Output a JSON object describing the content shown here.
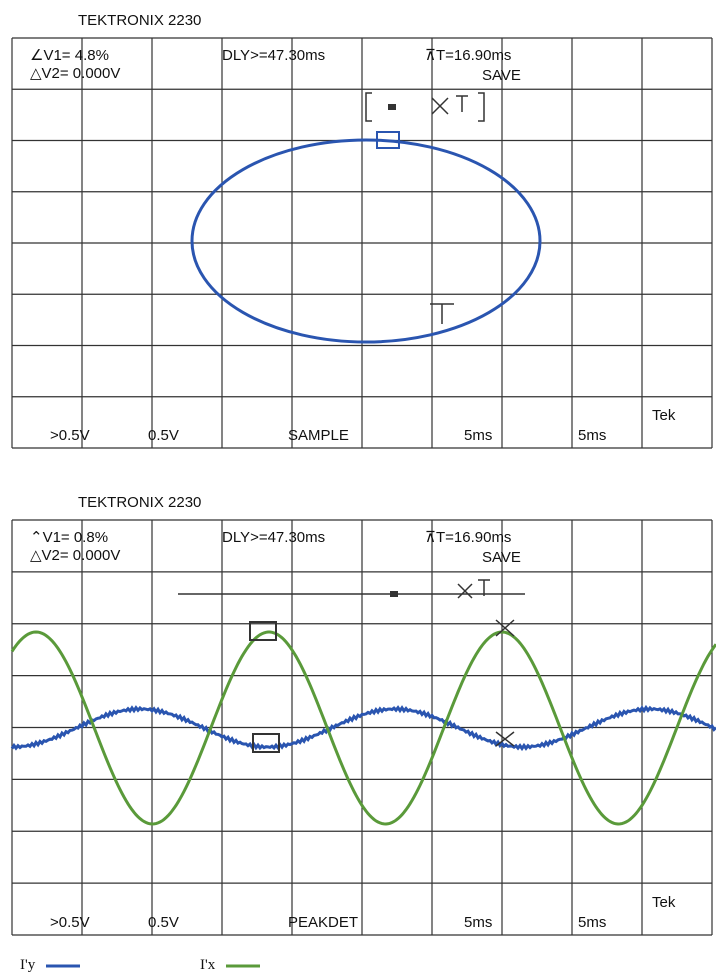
{
  "panels": [
    {
      "title": "TEKTRONIX 2230",
      "v1": "∠V1= 4.8%",
      "v2": "△V2= 0.000V",
      "dly": "DLY>=47.30ms",
      "dt": "⊼T=16.90ms",
      "mode": "SAVE",
      "bottom": [
        ">0.5V",
        "0.5V",
        "SAMPLE",
        "5ms",
        "5ms"
      ],
      "tek": "Tek"
    },
    {
      "title": "TEKTRONIX 2230",
      "v1": "⌃V1= 0.8%",
      "v2": "△V2= 0.000V",
      "dly": "DLY>=47.30ms",
      "dt": "⊼T=16.90ms",
      "mode": "SAVE",
      "bottom": [
        ">0.5V",
        "0.5V",
        "PEAKDET",
        "5ms",
        "5ms"
      ],
      "tek": "Tek"
    }
  ],
  "legend": [
    "I'y",
    "I'x"
  ]
}
